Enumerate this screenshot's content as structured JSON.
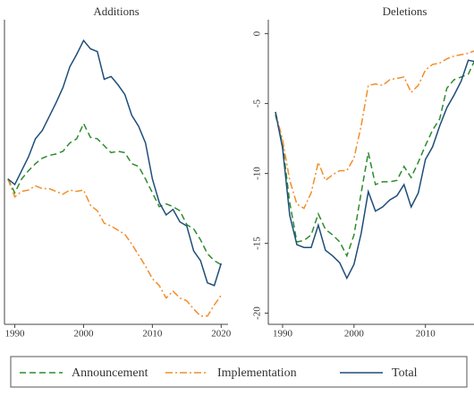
{
  "chart_data": [
    {
      "type": "line",
      "title": "Additions",
      "x": [
        1989,
        1990,
        1991,
        1992,
        1993,
        1994,
        1995,
        1996,
        1997,
        1998,
        1999,
        2000,
        2001,
        2002,
        2003,
        2004,
        2005,
        2006,
        2007,
        2008,
        2009,
        2010,
        2011,
        2012,
        2013,
        2014,
        2015,
        2016,
        2017,
        2018,
        2019,
        2020
      ],
      "xlim": [
        1988.5,
        2021
      ],
      "xticks": [
        1990,
        2000,
        2010,
        2020
      ],
      "ylim": [
        -1.4,
        20.6
      ],
      "series": [
        {
          "name": "Announcement",
          "color": "#2e8b2e",
          "dash": "dashed",
          "values": [
            9.1,
            8.1,
            9.1,
            9.7,
            10.2,
            10.6,
            10.8,
            10.9,
            11.1,
            11.7,
            12.0,
            13.1,
            12.1,
            12.0,
            11.5,
            11.0,
            11.1,
            11.0,
            10.2,
            10.0,
            9.1,
            8.1,
            7.1,
            7.3,
            7.1,
            6.8,
            5.8,
            5.5,
            4.7,
            3.7,
            3.2,
            2.9
          ]
        },
        {
          "name": "Implementation",
          "color": "#f28e2b",
          "dash": "dashdot",
          "values": [
            9.1,
            7.8,
            8.2,
            8.3,
            8.6,
            8.4,
            8.4,
            8.2,
            8.0,
            8.3,
            8.2,
            8.3,
            7.2,
            6.8,
            5.9,
            5.7,
            5.4,
            5.1,
            4.4,
            3.6,
            2.8,
            1.9,
            1.4,
            0.5,
            1.0,
            0.5,
            0.3,
            -0.3,
            -0.8,
            -0.8,
            0,
            0.7
          ]
        },
        {
          "name": "Total",
          "color": "#1f4e79",
          "dash": "solid",
          "values": [
            9.1,
            8.7,
            9.7,
            10.7,
            12.0,
            12.6,
            13.6,
            14.6,
            15.7,
            17.2,
            18.1,
            19.1,
            18.5,
            18.3,
            16.3,
            16.5,
            15.9,
            15.2,
            13.7,
            12.9,
            11.7,
            9.1,
            7.4,
            6.5,
            6.9,
            6.0,
            5.7,
            3.9,
            3.2,
            1.6,
            1.4,
            3.0
          ]
        }
      ]
    },
    {
      "type": "line",
      "title": "Deletions",
      "x": [
        1989,
        1990,
        1991,
        1992,
        1993,
        1994,
        1995,
        1996,
        1997,
        1998,
        1999,
        2000,
        2001,
        2002,
        2003,
        2004,
        2005,
        2006,
        2007,
        2008,
        2009,
        2010,
        2011,
        2012,
        2013,
        2014,
        2015,
        2016,
        2017
      ],
      "xlim": [
        1988,
        2016.8
      ],
      "xticks": [
        1990,
        2000,
        2010
      ],
      "ylim": [
        -20.8,
        1
      ],
      "yticks": [
        0,
        -5,
        -10,
        -15,
        -20
      ],
      "series": [
        {
          "name": "Announcement",
          "color": "#2e8b2e",
          "dash": "dashed",
          "values": [
            -5.8,
            -7.9,
            -12.1,
            -14.9,
            -14.8,
            -14.4,
            -12.9,
            -14.0,
            -14.4,
            -14.9,
            -15.9,
            -14.4,
            -11.4,
            -8.5,
            -10.8,
            -10.6,
            -10.6,
            -10.5,
            -9.5,
            -10.3,
            -9.2,
            -8.0,
            -6.9,
            -6.1,
            -3.9,
            -3.3,
            -3.1,
            -2.9,
            -1.8
          ]
        },
        {
          "name": "Implementation",
          "color": "#f28e2b",
          "dash": "dashdot",
          "values": [
            -5.6,
            -7.6,
            -10.5,
            -12.2,
            -12.5,
            -11.4,
            -9.2,
            -10.5,
            -10.1,
            -9.8,
            -9.8,
            -8.9,
            -6.6,
            -3.7,
            -3.6,
            -3.7,
            -3.3,
            -3.2,
            -3.1,
            -4.2,
            -3.7,
            -2.6,
            -2.2,
            -2.1,
            -1.8,
            -1.6,
            -1.5,
            -1.4,
            -1.2
          ]
        },
        {
          "name": "Total",
          "color": "#1f4e79",
          "dash": "solid",
          "values": [
            -5.6,
            -8.2,
            -13.0,
            -15.1,
            -15.3,
            -15.3,
            -13.7,
            -15.5,
            -15.9,
            -16.4,
            -17.5,
            -16.5,
            -14.3,
            -11.3,
            -12.7,
            -12.4,
            -11.9,
            -11.6,
            -10.8,
            -12.4,
            -11.4,
            -9.0,
            -8.1,
            -6.6,
            -5.3,
            -4.4,
            -3.4,
            -1.9,
            -2.0
          ]
        }
      ]
    }
  ]
}
